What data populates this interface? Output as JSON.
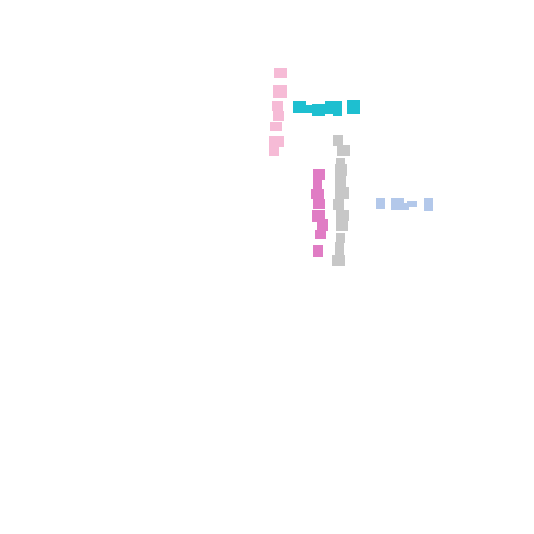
{
  "colors": {
    "background": "#ffffff",
    "pink_light": "#f6bbd6",
    "cyan": "#1ebfd0",
    "gray": "#c7c7c7",
    "magenta": "#e07cc4",
    "blue_light": "#b3c8ea"
  }
}
